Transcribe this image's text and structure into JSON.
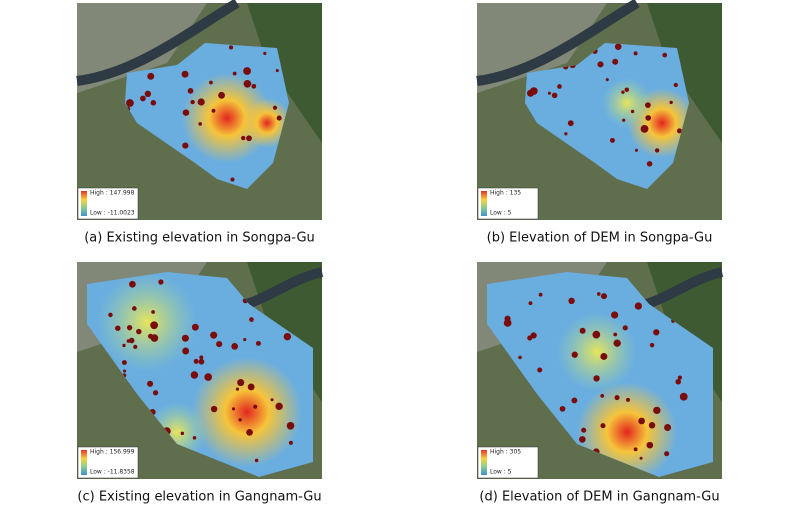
{
  "panels": [
    {
      "caption": "(a) Existing elevation in Songpa-Gu",
      "legend_high": "High : 147.998",
      "legend_low": "Low : -11.0023"
    },
    {
      "caption": "(b) Elevation of DEM in Songpa-Gu",
      "legend_high": "High : 135",
      "legend_low": "Low : 5"
    },
    {
      "caption": "(c) Existing elevation in Gangnam-Gu",
      "legend_high": "High : 156.999",
      "legend_low": "Low : -11.8358"
    },
    {
      "caption": "(d) Elevation of DEM in Gangnam-Gu",
      "legend_high": "High : 305",
      "legend_low": "Low : 5"
    }
  ]
}
